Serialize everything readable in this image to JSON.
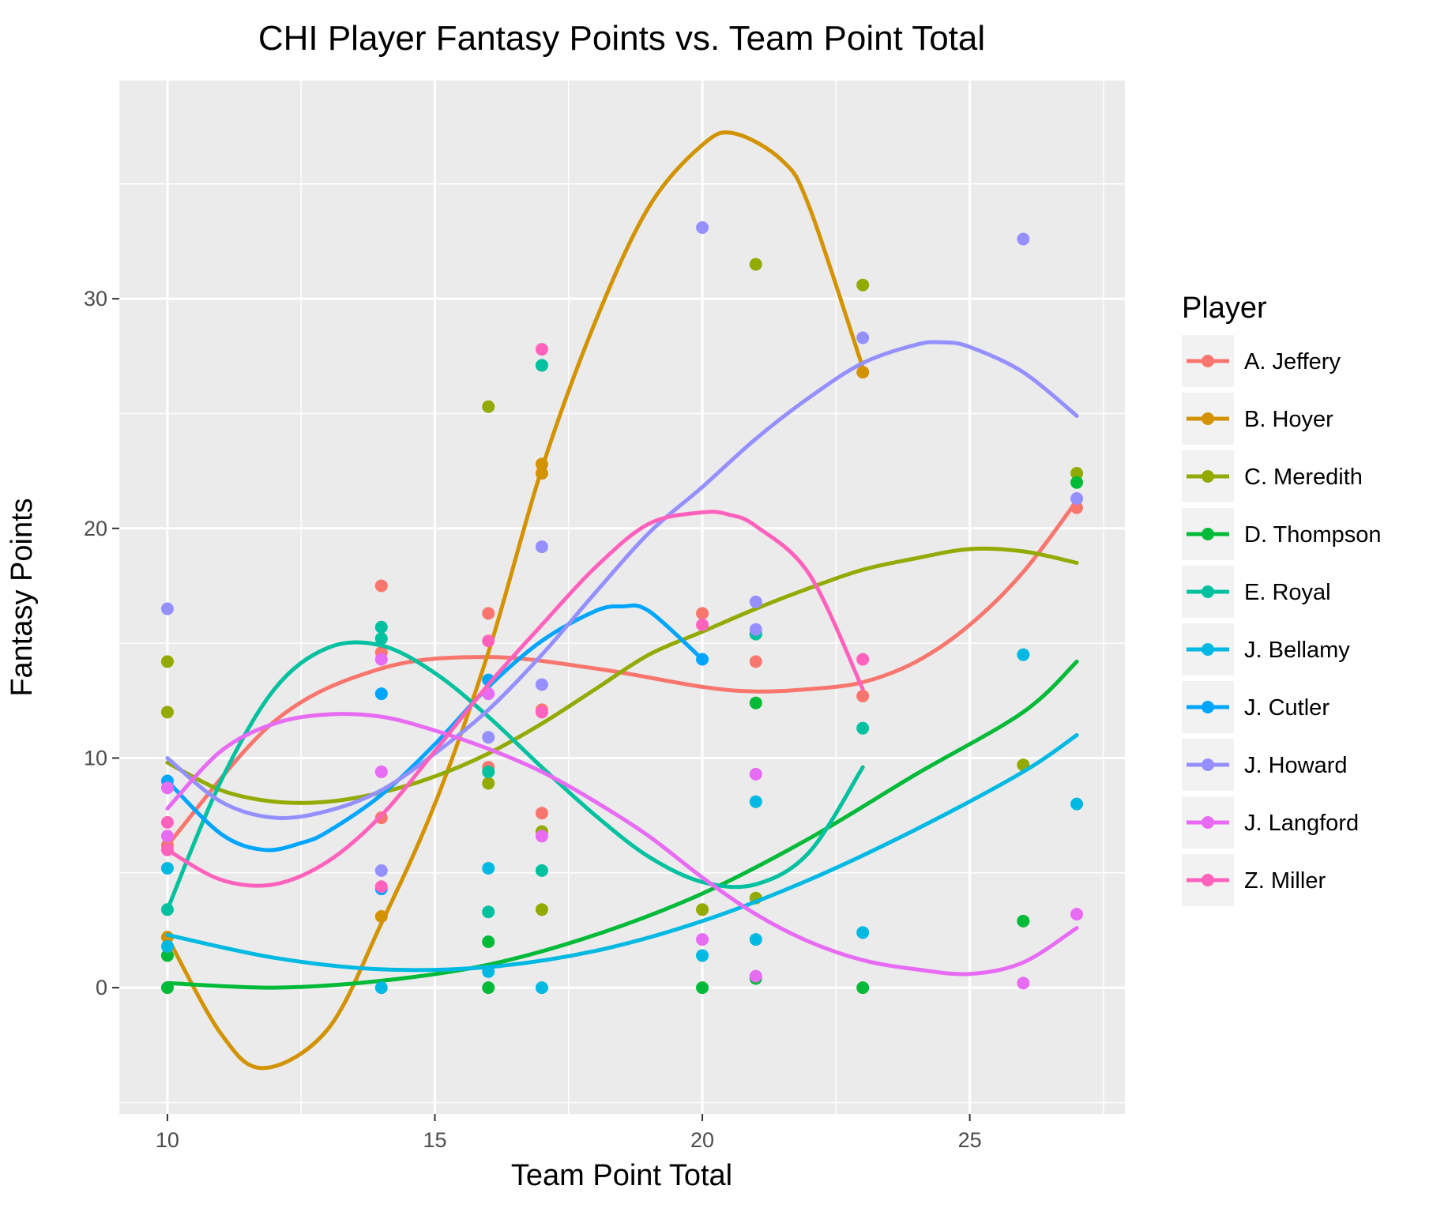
{
  "chart_data": {
    "type": "scatter",
    "title": "CHI Player Fantasy Points vs. Team Point Total",
    "xlabel": "Team Point Total",
    "ylabel": "Fantasy Points",
    "xlim": [
      9.1,
      27.9
    ],
    "ylim": [
      -5.5,
      39.5
    ],
    "x_ticks": [
      10,
      15,
      20,
      25
    ],
    "y_ticks": [
      0,
      10,
      20,
      30
    ],
    "grid": true,
    "legend": {
      "title": "Player",
      "position": "right"
    },
    "series": [
      {
        "name": "A. Jeffery",
        "color": "#F8766D",
        "points": [
          [
            10,
            6.2
          ],
          [
            14,
            7.4
          ],
          [
            14,
            17.5
          ],
          [
            14,
            14.6
          ],
          [
            16,
            16.3
          ],
          [
            16,
            9.6
          ],
          [
            17,
            7.6
          ],
          [
            17,
            12.1
          ],
          [
            20,
            16.3
          ],
          [
            21,
            14.2
          ],
          [
            23,
            12.7
          ],
          [
            27,
            20.9
          ]
        ],
        "curve": [
          [
            10,
            6.2
          ],
          [
            12,
            11.6
          ],
          [
            14,
            13.9
          ],
          [
            16,
            14.4
          ],
          [
            18,
            13.9
          ],
          [
            20,
            13.1
          ],
          [
            21,
            12.9
          ],
          [
            22,
            13.0
          ],
          [
            23,
            13.3
          ],
          [
            24,
            14.2
          ],
          [
            25,
            15.8
          ],
          [
            26,
            18.1
          ],
          [
            27,
            21.2
          ]
        ]
      },
      {
        "name": "B. Hoyer",
        "color": "#D39200",
        "points": [
          [
            10,
            2.2
          ],
          [
            14,
            3.1
          ],
          [
            17,
            22.8
          ],
          [
            17,
            22.4
          ],
          [
            23,
            26.8
          ]
        ],
        "curve": [
          [
            10,
            2.2
          ],
          [
            11,
            -2.0
          ],
          [
            11.8,
            -3.5
          ],
          [
            13,
            -1.8
          ],
          [
            14,
            2.8
          ],
          [
            15,
            8.0
          ],
          [
            16,
            14.6
          ],
          [
            17,
            22.6
          ],
          [
            18,
            29.0
          ],
          [
            19,
            34.0
          ],
          [
            20,
            36.7
          ],
          [
            20.6,
            37.2
          ],
          [
            21.5,
            36.0
          ],
          [
            22,
            34.0
          ],
          [
            23,
            27.0
          ]
        ]
      },
      {
        "name": "C. Meredith",
        "color": "#93AA00",
        "points": [
          [
            10,
            14.2
          ],
          [
            10,
            12.0
          ],
          [
            16,
            25.3
          ],
          [
            16,
            8.9
          ],
          [
            17,
            6.8
          ],
          [
            17,
            3.4
          ],
          [
            20,
            3.4
          ],
          [
            21,
            31.5
          ],
          [
            21,
            3.9
          ],
          [
            23,
            30.6
          ],
          [
            26,
            9.7
          ],
          [
            27,
            22.4
          ]
        ],
        "curve": [
          [
            10,
            9.8
          ],
          [
            11,
            8.6
          ],
          [
            12,
            8.1
          ],
          [
            13,
            8.1
          ],
          [
            14,
            8.5
          ],
          [
            15,
            9.2
          ],
          [
            16,
            10.2
          ],
          [
            17,
            11.5
          ],
          [
            18,
            13.0
          ],
          [
            19,
            14.5
          ],
          [
            20,
            15.5
          ],
          [
            21,
            16.5
          ],
          [
            22,
            17.4
          ],
          [
            23,
            18.2
          ],
          [
            24,
            18.7
          ],
          [
            25,
            19.1
          ],
          [
            26,
            19.0
          ],
          [
            27,
            18.5
          ]
        ]
      },
      {
        "name": "D. Thompson",
        "color": "#00BA38",
        "points": [
          [
            10,
            0
          ],
          [
            10,
            1.4
          ],
          [
            16,
            0
          ],
          [
            16,
            2.0
          ],
          [
            20,
            0
          ],
          [
            21,
            15.4
          ],
          [
            21,
            12.4
          ],
          [
            21,
            0.4
          ],
          [
            23,
            0
          ],
          [
            26,
            2.9
          ],
          [
            27,
            22.0
          ]
        ],
        "curve": [
          [
            10,
            0.2
          ],
          [
            12,
            0.0
          ],
          [
            14,
            0.3
          ],
          [
            16,
            1.0
          ],
          [
            18,
            2.3
          ],
          [
            20,
            4.1
          ],
          [
            22,
            6.5
          ],
          [
            24,
            9.3
          ],
          [
            26,
            12.0
          ],
          [
            27,
            14.2
          ]
        ]
      },
      {
        "name": "E. Royal",
        "color": "#00C19F",
        "points": [
          [
            10,
            3.4
          ],
          [
            14,
            15.7
          ],
          [
            14,
            15.2
          ],
          [
            16,
            9.4
          ],
          [
            16,
            3.3
          ],
          [
            17,
            27.1
          ],
          [
            17,
            5.1
          ],
          [
            21,
            15.4
          ],
          [
            23,
            11.3
          ]
        ],
        "curve": [
          [
            10,
            3.4
          ],
          [
            11,
            9.0
          ],
          [
            12,
            13.0
          ],
          [
            13,
            14.8
          ],
          [
            14,
            14.9
          ],
          [
            15,
            13.7
          ],
          [
            16,
            11.8
          ],
          [
            17,
            9.6
          ],
          [
            18,
            7.5
          ],
          [
            19,
            5.7
          ],
          [
            20,
            4.6
          ],
          [
            21,
            4.5
          ],
          [
            22,
            5.9
          ],
          [
            23,
            9.6
          ]
        ]
      },
      {
        "name": "J. Bellamy",
        "color": "#00B9E3",
        "points": [
          [
            10,
            5.2
          ],
          [
            10,
            1.8
          ],
          [
            14,
            0
          ],
          [
            16,
            5.2
          ],
          [
            16,
            0.7
          ],
          [
            17,
            0
          ],
          [
            20,
            1.4
          ],
          [
            21,
            8.1
          ],
          [
            21,
            2.1
          ],
          [
            23,
            2.4
          ],
          [
            26,
            14.5
          ],
          [
            27,
            8.0
          ]
        ],
        "curve": [
          [
            10,
            2.3
          ],
          [
            12,
            1.3
          ],
          [
            14,
            0.8
          ],
          [
            16,
            0.9
          ],
          [
            18,
            1.6
          ],
          [
            20,
            2.9
          ],
          [
            22,
            4.7
          ],
          [
            24,
            6.9
          ],
          [
            26,
            9.4
          ],
          [
            27,
            11.0
          ]
        ]
      },
      {
        "name": "J. Cutler",
        "color": "#00A5FF",
        "points": [
          [
            10,
            9.0
          ],
          [
            14,
            12.8
          ],
          [
            14,
            4.3
          ],
          [
            16,
            13.4
          ],
          [
            20,
            14.3
          ]
        ],
        "curve": [
          [
            10,
            9.0
          ],
          [
            11,
            6.7
          ],
          [
            11.8,
            6.0
          ],
          [
            12.5,
            6.3
          ],
          [
            13,
            6.8
          ],
          [
            14,
            8.4
          ],
          [
            15,
            10.6
          ],
          [
            16,
            13.1
          ],
          [
            17,
            15.1
          ],
          [
            18,
            16.4
          ],
          [
            18.5,
            16.6
          ],
          [
            19,
            16.4
          ],
          [
            20,
            14.3
          ]
        ]
      },
      {
        "name": "J. Howard",
        "color": "#9590FF",
        "points": [
          [
            10,
            16.5
          ],
          [
            14,
            5.1
          ],
          [
            16,
            10.9
          ],
          [
            17,
            19.2
          ],
          [
            17,
            13.2
          ],
          [
            20,
            33.1
          ],
          [
            21,
            16.8
          ],
          [
            21,
            15.6
          ],
          [
            23,
            28.3
          ],
          [
            26,
            32.6
          ],
          [
            27,
            21.3
          ]
        ],
        "curve": [
          [
            10,
            10.0
          ],
          [
            11,
            8.1
          ],
          [
            12,
            7.4
          ],
          [
            13,
            7.7
          ],
          [
            14,
            8.6
          ],
          [
            15,
            10.2
          ],
          [
            16,
            12.1
          ],
          [
            17,
            14.5
          ],
          [
            18,
            17.2
          ],
          [
            19,
            19.8
          ],
          [
            20,
            21.8
          ],
          [
            21,
            23.9
          ],
          [
            22,
            25.7
          ],
          [
            23,
            27.2
          ],
          [
            24,
            28.0
          ],
          [
            24.5,
            28.1
          ],
          [
            25,
            27.9
          ],
          [
            26,
            26.8
          ],
          [
            27,
            24.9
          ]
        ]
      },
      {
        "name": "J. Langford",
        "color": "#E76BF3",
        "points": [
          [
            10,
            8.7
          ],
          [
            10,
            6.6
          ],
          [
            14,
            9.4
          ],
          [
            14,
            14.3
          ],
          [
            16,
            12.8
          ],
          [
            17,
            6.6
          ],
          [
            20,
            2.1
          ],
          [
            21,
            9.3
          ],
          [
            21,
            0.5
          ],
          [
            26,
            0.2
          ],
          [
            27,
            3.2
          ]
        ],
        "curve": [
          [
            10,
            7.8
          ],
          [
            11,
            10.3
          ],
          [
            12,
            11.5
          ],
          [
            13,
            11.9
          ],
          [
            14,
            11.8
          ],
          [
            15,
            11.2
          ],
          [
            16,
            10.4
          ],
          [
            17,
            9.4
          ],
          [
            18,
            8.1
          ],
          [
            19,
            6.6
          ],
          [
            20,
            4.8
          ],
          [
            21,
            3.2
          ],
          [
            22,
            2.0
          ],
          [
            23,
            1.2
          ],
          [
            24,
            0.8
          ],
          [
            25,
            0.6
          ],
          [
            26,
            1.1
          ],
          [
            27,
            2.6
          ]
        ]
      },
      {
        "name": "Z. Miller",
        "color": "#FF62BC",
        "points": [
          [
            10,
            7.2
          ],
          [
            10,
            6.0
          ],
          [
            14,
            4.4
          ],
          [
            16,
            15.1
          ],
          [
            17,
            27.8
          ],
          [
            17,
            12.0
          ],
          [
            20,
            15.8
          ],
          [
            23,
            14.3
          ]
        ],
        "curve": [
          [
            10,
            6.0
          ],
          [
            11,
            4.7
          ],
          [
            12,
            4.5
          ],
          [
            13,
            5.5
          ],
          [
            14,
            7.5
          ],
          [
            15,
            10.3
          ],
          [
            16,
            13.2
          ],
          [
            17,
            15.8
          ],
          [
            18,
            18.3
          ],
          [
            19,
            20.2
          ],
          [
            20,
            20.7
          ],
          [
            20.5,
            20.6
          ],
          [
            21,
            20.1
          ],
          [
            22,
            18.0
          ],
          [
            23,
            13.0
          ]
        ]
      }
    ]
  }
}
